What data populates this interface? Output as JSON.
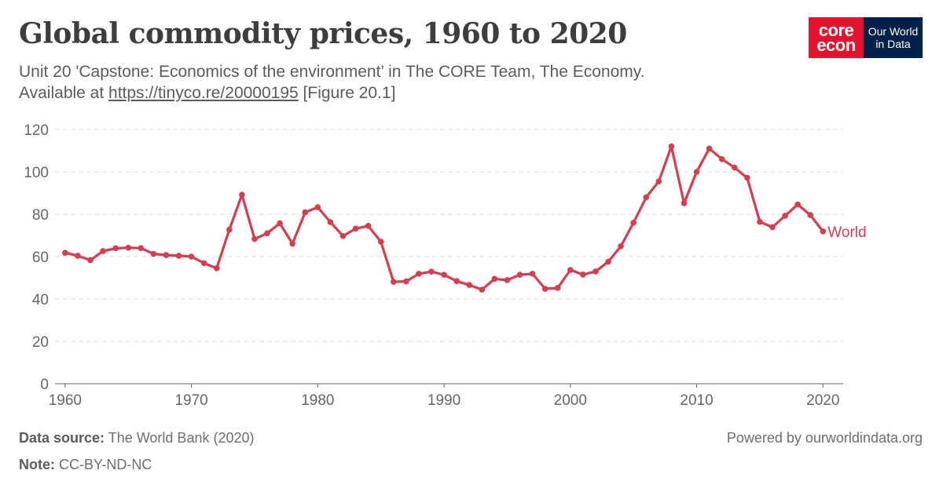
{
  "header": {
    "title": "Global commodity prices, 1960 to 2020",
    "subtitle_line1": "Unit 20 'Capstone: Economics of the environment’ in The CORE Team, The Economy.",
    "subtitle_prefix": "Available at ",
    "subtitle_link": "https://tinyco.re/20000195",
    "subtitle_suffix": " [Figure 20.1]"
  },
  "logo": {
    "core_top": "core",
    "core_bottom": "econ",
    "owid_top": "Our World",
    "owid_bottom": "in Data"
  },
  "footer": {
    "source_label": "Data source:",
    "source_text": "The World Bank (2020)",
    "note_label": "Note:",
    "note_text": "CC-BY-ND-NC",
    "powered_by": "Powered by ourworldindata.org"
  },
  "colors": {
    "series": "#d73c50",
    "grid": "#dddddd",
    "axis": "#666666"
  },
  "chart_data": {
    "type": "line",
    "title": "Global commodity prices, 1960 to 2020",
    "xlabel": "",
    "ylabel": "",
    "xlim": [
      1960,
      2020
    ],
    "ylim": [
      0,
      120
    ],
    "yticks": [
      0,
      20,
      40,
      60,
      80,
      100,
      120
    ],
    "xticks": [
      1960,
      1970,
      1980,
      1990,
      2000,
      2010,
      2020
    ],
    "grid": true,
    "series": [
      {
        "name": "World",
        "x": [
          1960,
          1961,
          1962,
          1963,
          1964,
          1965,
          1966,
          1967,
          1968,
          1969,
          1970,
          1971,
          1972,
          1973,
          1974,
          1975,
          1976,
          1977,
          1978,
          1979,
          1980,
          1981,
          1982,
          1983,
          1984,
          1985,
          1986,
          1987,
          1988,
          1989,
          1990,
          1991,
          1992,
          1993,
          1994,
          1995,
          1996,
          1997,
          1998,
          1999,
          2000,
          2001,
          2002,
          2003,
          2004,
          2005,
          2006,
          2007,
          2008,
          2009,
          2010,
          2011,
          2012,
          2013,
          2014,
          2015,
          2016,
          2017,
          2018,
          2019,
          2020
        ],
        "values": [
          61.8,
          60.4,
          58.3,
          62.6,
          63.9,
          64.2,
          64.0,
          61.3,
          60.7,
          60.4,
          60.0,
          56.9,
          54.5,
          72.7,
          89.2,
          68.3,
          71.0,
          75.7,
          66.1,
          80.9,
          83.3,
          76.3,
          69.7,
          73.2,
          74.5,
          67.0,
          48.1,
          48.3,
          51.9,
          52.9,
          51.4,
          48.4,
          46.6,
          44.4,
          49.5,
          48.9,
          51.4,
          51.9,
          44.8,
          45.2,
          53.7,
          51.5,
          53.0,
          57.6,
          64.9,
          76.0,
          88.0,
          95.5,
          112.0,
          85.2,
          100.0,
          111.0,
          106.0,
          102.0,
          97.2,
          76.4,
          73.9,
          79.3,
          84.6,
          79.6,
          71.9
        ]
      }
    ]
  }
}
